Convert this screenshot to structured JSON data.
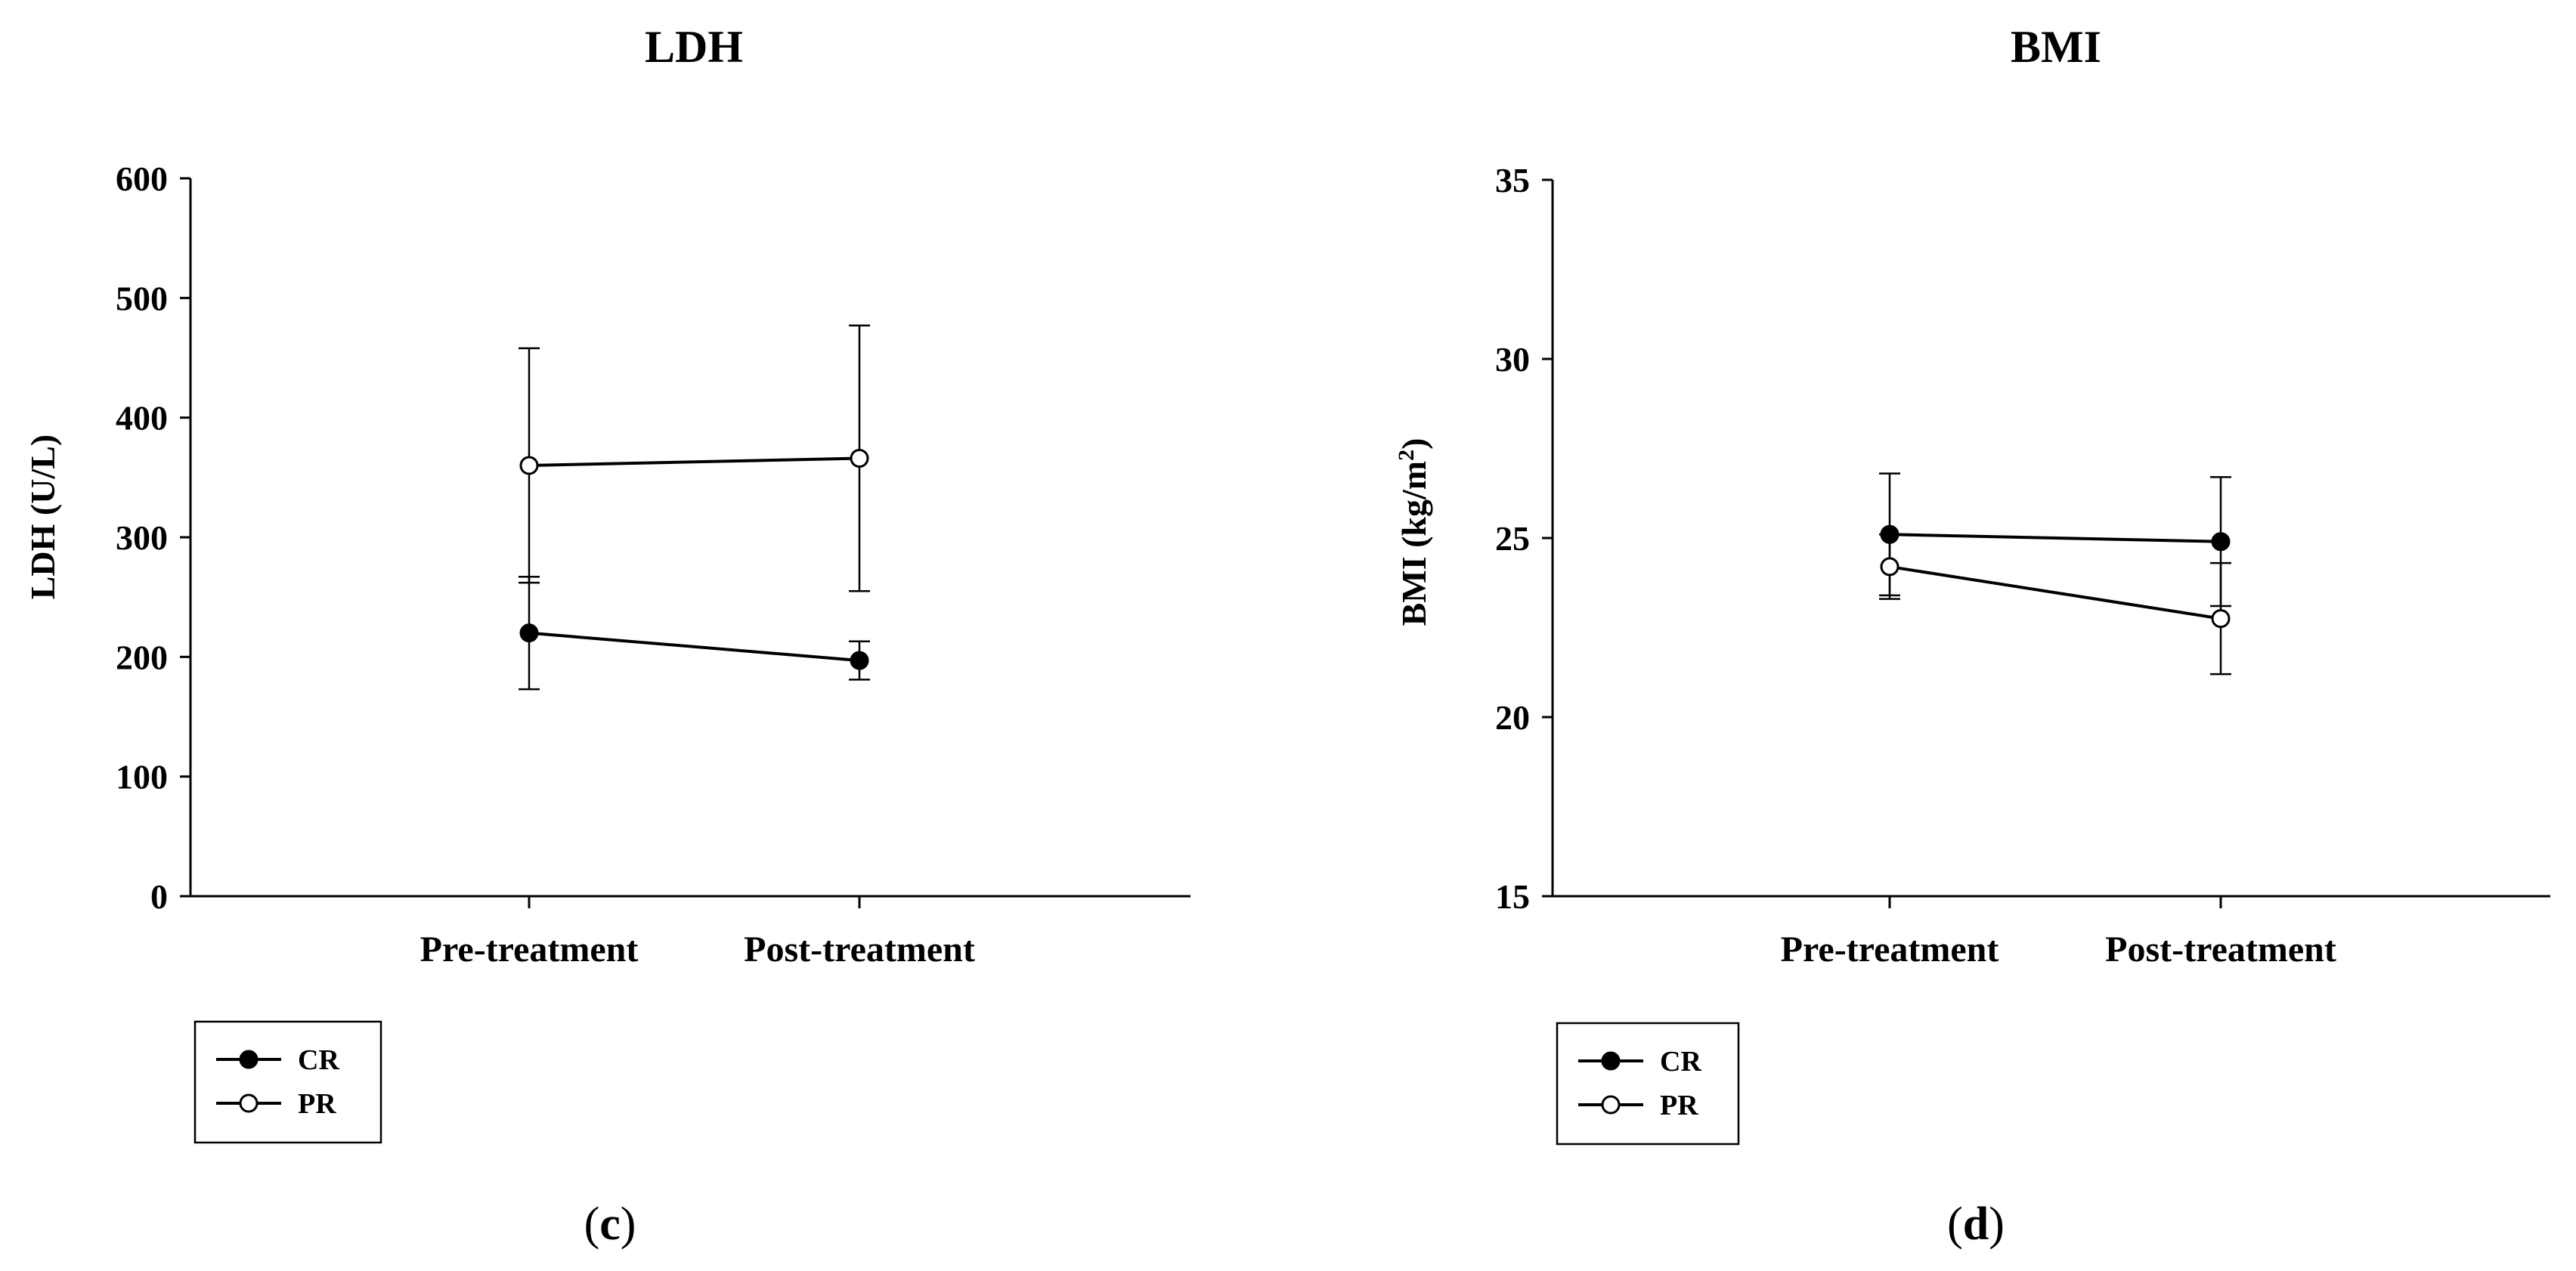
{
  "chart_data": [
    {
      "type": "line",
      "title": "LDH",
      "xlabel": "",
      "ylabel": "LDH (U/L)",
      "ylabel_main": "LDH (U/L)",
      "ylabel_sup": "",
      "ylabel_tail": "",
      "ylim": [
        0,
        600
      ],
      "yticks": [
        0,
        100,
        200,
        300,
        400,
        500,
        600
      ],
      "ytick_labels": [
        "0",
        "100",
        "200",
        "300",
        "400",
        "500",
        "600"
      ],
      "categories": [
        "Pre-treatment",
        "Post-treatment"
      ],
      "series": [
        {
          "name": "CR",
          "marker": "filled",
          "values": [
            220,
            197
          ],
          "error": [
            47,
            16
          ]
        },
        {
          "name": "PR",
          "marker": "open",
          "values": [
            360,
            366
          ],
          "error": [
            98,
            111
          ]
        }
      ],
      "grid": false,
      "legend": "bottom-left",
      "panel_letter": "c"
    },
    {
      "type": "line",
      "title": "BMI",
      "xlabel": "",
      "ylabel": "BMI (kg/m2)",
      "ylabel_main": "BMI (kg/m",
      "ylabel_sup": "2",
      "ylabel_tail": ")",
      "ylim": [
        15,
        35
      ],
      "yticks": [
        15,
        20,
        25,
        30,
        35
      ],
      "ytick_labels": [
        "15",
        "20",
        "25",
        "30",
        "35"
      ],
      "categories": [
        "Pre-treatment",
        "Post-treatment"
      ],
      "series": [
        {
          "name": "CR",
          "marker": "filled",
          "values": [
            25.1,
            24.9
          ],
          "error": [
            1.7,
            1.8
          ]
        },
        {
          "name": "PR",
          "marker": "open",
          "values": [
            24.2,
            22.75
          ],
          "error": [
            0.9,
            1.55
          ]
        }
      ],
      "grid": false,
      "legend": "bottom-left",
      "panel_letter": "d"
    }
  ],
  "colors": {
    "line": "#000000",
    "background": "#ffffff"
  }
}
